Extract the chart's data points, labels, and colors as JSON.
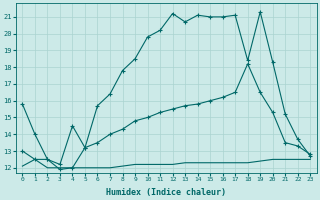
{
  "xlabel": "Humidex (Indice chaleur)",
  "bg_color": "#cceae8",
  "line_color": "#006868",
  "grid_color": "#aad4d0",
  "xlim": [
    -0.5,
    23.5
  ],
  "ylim": [
    11.7,
    21.8
  ],
  "xticks": [
    0,
    1,
    2,
    3,
    4,
    5,
    6,
    7,
    8,
    9,
    10,
    11,
    12,
    13,
    14,
    15,
    16,
    17,
    18,
    19,
    20,
    21,
    22,
    23
  ],
  "yticks": [
    12,
    13,
    14,
    15,
    16,
    17,
    18,
    19,
    20,
    21
  ],
  "line1_x": [
    0,
    1,
    2,
    3,
    4,
    5,
    6,
    7,
    8,
    9,
    10,
    11,
    12,
    13,
    14,
    15,
    16,
    17,
    18,
    19,
    20,
    21,
    22,
    23
  ],
  "line1_y": [
    15.8,
    14.0,
    12.5,
    11.9,
    12.0,
    13.2,
    15.7,
    16.4,
    17.8,
    18.5,
    19.8,
    20.2,
    21.2,
    20.7,
    21.1,
    21.0,
    21.0,
    21.1,
    18.4,
    21.3,
    18.3,
    15.2,
    13.7,
    12.7
  ],
  "line2_x": [
    0,
    1,
    2,
    3,
    4,
    5,
    6,
    7,
    8,
    9,
    10,
    11,
    12,
    13,
    14,
    15,
    16,
    17,
    18,
    19,
    20,
    21,
    22,
    23
  ],
  "line2_y": [
    13.0,
    12.5,
    12.5,
    12.2,
    14.5,
    13.2,
    13.5,
    14.0,
    14.3,
    14.8,
    15.0,
    15.3,
    15.5,
    15.7,
    15.8,
    16.0,
    16.2,
    16.5,
    18.2,
    16.5,
    15.3,
    13.5,
    13.3,
    12.8
  ],
  "line3_x": [
    0,
    1,
    2,
    3,
    4,
    5,
    6,
    7,
    8,
    9,
    10,
    11,
    12,
    13,
    14,
    15,
    16,
    17,
    18,
    19,
    20,
    21,
    22,
    23
  ],
  "line3_y": [
    12.1,
    12.5,
    12.0,
    12.0,
    12.0,
    12.0,
    12.0,
    12.0,
    12.1,
    12.2,
    12.2,
    12.2,
    12.2,
    12.3,
    12.3,
    12.3,
    12.3,
    12.3,
    12.3,
    12.4,
    12.5,
    12.5,
    12.5,
    12.5
  ]
}
